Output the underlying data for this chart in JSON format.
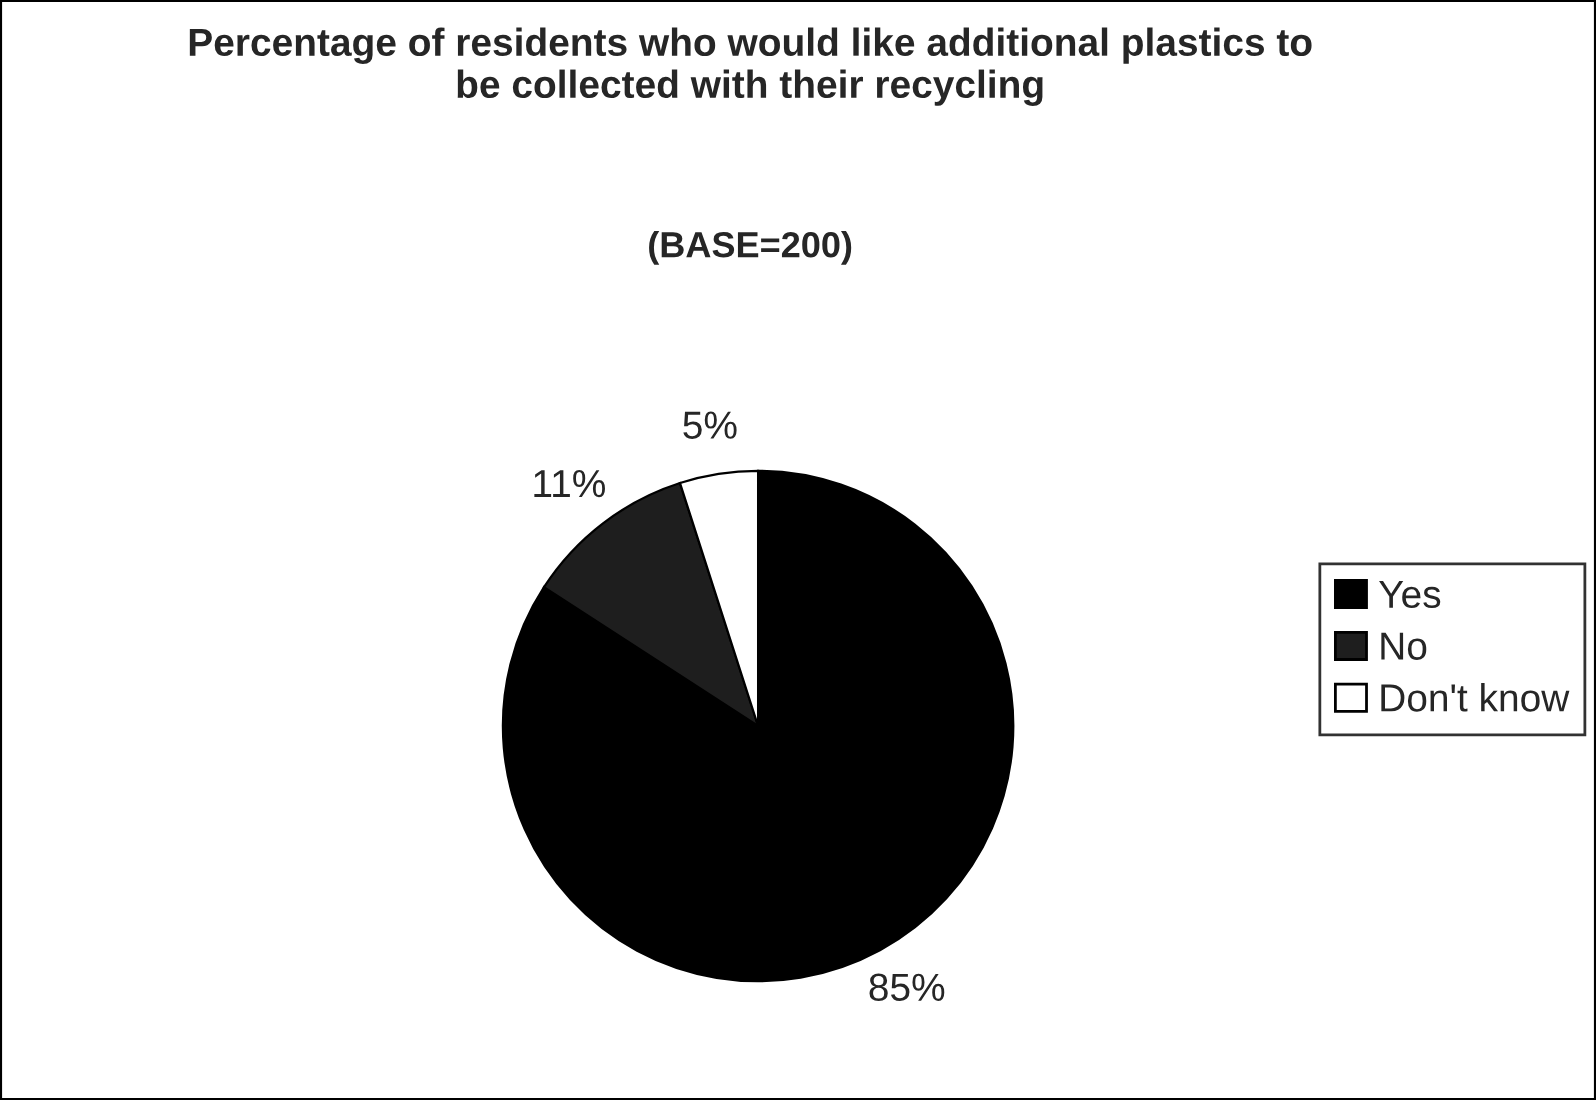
{
  "chart_data": {
    "type": "pie",
    "title": "Percentage of residents who would like additional plastics to be collected with their recycling",
    "subtitle": "(BASE=200)",
    "categories": [
      "Yes",
      "No",
      "Don't know"
    ],
    "values": [
      85,
      11,
      5
    ],
    "value_labels": [
      "85%",
      "11%",
      "5%"
    ],
    "colors": [
      "#000000",
      "#1e1e1e",
      "#ffffff"
    ],
    "legend": "right"
  }
}
